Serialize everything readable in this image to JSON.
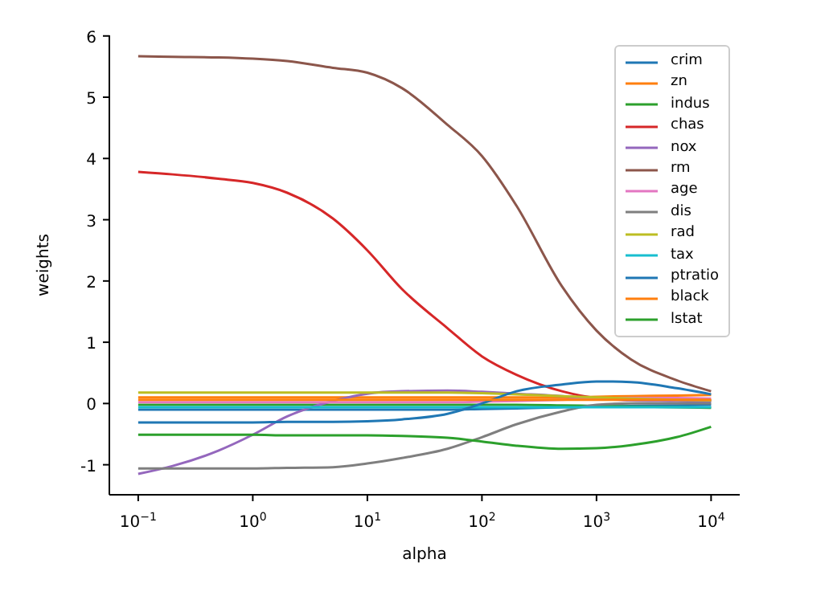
{
  "chart_data": {
    "type": "line",
    "xlabel": "alpha",
    "ylabel": "weights",
    "log": "x",
    "grid": false,
    "legend": "top right",
    "marker": "none",
    "line_style": "solid",
    "x": [
      0.1,
      0.2,
      0.5,
      1,
      2,
      5,
      10,
      20,
      50,
      100,
      200,
      500,
      1000,
      2000,
      5000,
      10000
    ],
    "xlim": [
      0.056,
      17783
    ],
    "xticks": [
      {
        "value": 0.1,
        "label": "10$^{−1}$"
      },
      {
        "value": 1,
        "label": "10$^{0}$"
      },
      {
        "value": 10,
        "label": "10$^{1}$"
      },
      {
        "value": 100,
        "label": "10$^{2}$"
      },
      {
        "value": 1000,
        "label": "10$^{3}$"
      },
      {
        "value": 10000,
        "label": "10$^{4}$"
      }
    ],
    "ylim": [
      -1.49,
      6.01
    ],
    "yticks": [
      -1,
      0,
      1,
      2,
      3,
      4,
      5,
      6
    ],
    "series": [
      {
        "name": "crim",
        "color": "#1f77b4",
        "values": [
          -0.1,
          -0.1,
          -0.1,
          -0.1,
          -0.1,
          -0.1,
          -0.1,
          -0.1,
          -0.1,
          -0.09,
          -0.08,
          -0.06,
          -0.05,
          -0.04,
          -0.03,
          -0.02
        ]
      },
      {
        "name": "zn",
        "color": "#ff7f0e",
        "values": [
          0.1,
          0.1,
          0.1,
          0.1,
          0.1,
          0.1,
          0.1,
          0.1,
          0.1,
          0.1,
          0.1,
          0.1,
          0.11,
          0.12,
          0.13,
          0.14
        ]
      },
      {
        "name": "indus",
        "color": "#2ca02c",
        "values": [
          -0.02,
          -0.02,
          -0.02,
          -0.02,
          -0.02,
          -0.02,
          -0.02,
          -0.02,
          -0.02,
          -0.02,
          -0.02,
          -0.03,
          -0.04,
          -0.05,
          -0.06,
          -0.07
        ]
      },
      {
        "name": "chas",
        "color": "#d62728",
        "values": [
          3.78,
          3.74,
          3.67,
          3.6,
          3.44,
          3.02,
          2.5,
          1.87,
          1.23,
          0.77,
          0.47,
          0.2,
          0.09,
          0.06,
          0.05,
          0.05
        ]
      },
      {
        "name": "nox",
        "color": "#9467bd",
        "values": [
          -1.15,
          -1.02,
          -0.77,
          -0.51,
          -0.21,
          0.04,
          0.16,
          0.2,
          0.21,
          0.19,
          0.16,
          0.12,
          0.08,
          0.05,
          0.04,
          0.03
        ]
      },
      {
        "name": "rm",
        "color": "#8c564b",
        "values": [
          5.67,
          5.66,
          5.65,
          5.63,
          5.59,
          5.48,
          5.4,
          5.15,
          4.55,
          4.04,
          3.23,
          1.91,
          1.19,
          0.72,
          0.38,
          0.2
        ]
      },
      {
        "name": "age",
        "color": "#e377c2",
        "values": [
          0.02,
          0.02,
          0.02,
          0.02,
          0.02,
          0.02,
          0.02,
          0.02,
          0.02,
          0.03,
          0.04,
          0.06,
          0.08,
          0.09,
          0.09,
          0.08
        ]
      },
      {
        "name": "dis",
        "color": "#7f7f7f",
        "values": [
          -1.06,
          -1.06,
          -1.06,
          -1.06,
          -1.05,
          -1.04,
          -0.98,
          -0.89,
          -0.74,
          -0.55,
          -0.34,
          -0.13,
          -0.02,
          0,
          0,
          0
        ]
      },
      {
        "name": "rad",
        "color": "#bcbd22",
        "values": [
          0.18,
          0.18,
          0.18,
          0.18,
          0.18,
          0.18,
          0.18,
          0.18,
          0.18,
          0.17,
          0.15,
          0.12,
          0.1,
          0.08,
          0.06,
          0.05
        ]
      },
      {
        "name": "tax",
        "color": "#17becf",
        "values": [
          -0.06,
          -0.06,
          -0.06,
          -0.06,
          -0.06,
          -0.06,
          -0.06,
          -0.06,
          -0.06,
          -0.06,
          -0.06,
          -0.06,
          -0.06,
          -0.06,
          -0.06,
          -0.06
        ]
      },
      {
        "name": "ptratio",
        "color": "#1f77b4",
        "values": [
          -0.31,
          -0.31,
          -0.31,
          -0.31,
          -0.3,
          -0.3,
          -0.29,
          -0.26,
          -0.17,
          0,
          0.2,
          0.31,
          0.36,
          0.35,
          0.25,
          0.15
        ]
      },
      {
        "name": "black",
        "color": "#ff7f0e",
        "values": [
          0.06,
          0.06,
          0.06,
          0.06,
          0.06,
          0.06,
          0.06,
          0.06,
          0.06,
          0.06,
          0.06,
          0.06,
          0.06,
          0.06,
          0.06,
          0.06
        ]
      },
      {
        "name": "lstat",
        "color": "#2ca02c",
        "values": [
          -0.51,
          -0.51,
          -0.51,
          -0.51,
          -0.52,
          -0.52,
          -0.52,
          -0.53,
          -0.56,
          -0.62,
          -0.69,
          -0.74,
          -0.73,
          -0.68,
          -0.55,
          -0.38
        ]
      }
    ]
  }
}
